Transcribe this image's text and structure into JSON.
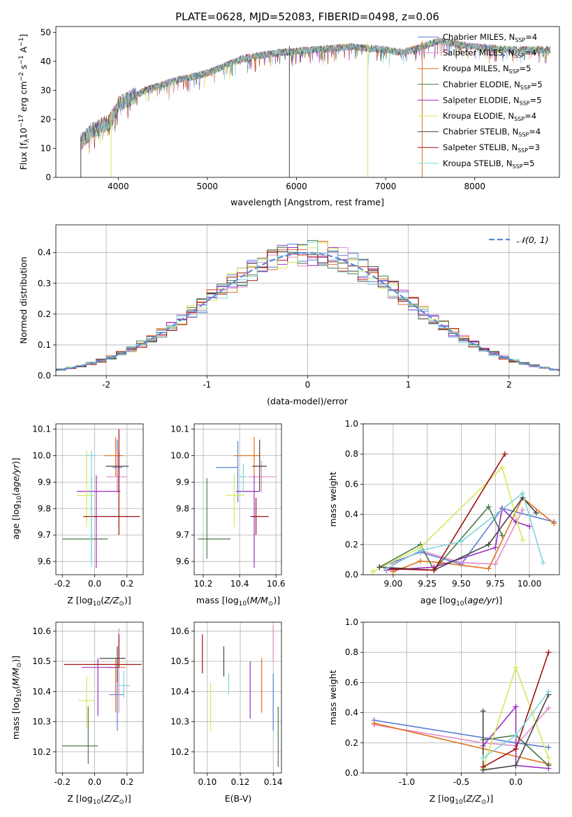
{
  "title": "PLATE=0628, MJD=52083, FIBERID=0498, z=0.06",
  "colors": {
    "Chabrier MILES": "#5a7fd6",
    "Salpeter MILES": "#e58bc9",
    "Kroupa MILES": "#e0711f",
    "Chabrier ELODIE": "#4a7a4a",
    "Salpeter ELODIE": "#9b30c0",
    "Kroupa ELODIE": "#d4e85a",
    "Chabrier STELIB": "#444444",
    "Salpeter STELIB": "#a01010",
    "Kroupa STELIB": "#7fd6dc"
  },
  "chart_data": [
    {
      "type": "line",
      "panel": "spectrum",
      "xlabel": "wavelength [Angstrom, rest frame]",
      "ylabel": "Flux [f_λ 10^-17 erg cm^-2 s^-1 A^-1]",
      "xlim": [
        3300,
        8950
      ],
      "ylim": [
        0,
        52
      ],
      "xticks": [
        4000,
        5000,
        6000,
        7000,
        8000
      ],
      "yticks": [
        0,
        10,
        20,
        30,
        40,
        50
      ],
      "grid": false,
      "legend": "upper right",
      "continuum": [
        [
          3580,
          12
        ],
        [
          3700,
          16
        ],
        [
          3900,
          19
        ],
        [
          4000,
          25
        ],
        [
          4300,
          30
        ],
        [
          4600,
          33
        ],
        [
          5000,
          36
        ],
        [
          5400,
          41
        ],
        [
          5800,
          43
        ],
        [
          6200,
          44
        ],
        [
          6600,
          45
        ],
        [
          7000,
          44
        ],
        [
          7200,
          43
        ],
        [
          7600,
          47
        ],
        [
          8000,
          45
        ],
        [
          8400,
          44
        ],
        [
          8850,
          44
        ]
      ],
      "series": [
        {
          "name": "Chabrier MILES",
          "N_SSP": 4
        },
        {
          "name": "Salpeter MILES",
          "N_SSP": 4
        },
        {
          "name": "Kroupa MILES",
          "N_SSP": 5
        },
        {
          "name": "Chabrier ELODIE",
          "N_SSP": 5
        },
        {
          "name": "Salpeter ELODIE",
          "N_SSP": 5
        },
        {
          "name": "Kroupa ELODIE",
          "N_SSP": 4
        },
        {
          "name": "Chabrier STELIB",
          "N_SSP": 4
        },
        {
          "name": "Salpeter STELIB",
          "N_SSP": 3
        },
        {
          "name": "Kroupa STELIB",
          "N_SSP": 5
        }
      ],
      "vertical_lines": [
        {
          "x": 3580,
          "series": "Chabrier STELIB"
        },
        {
          "x": 3920,
          "series": "Kroupa ELODIE"
        },
        {
          "x": 5920,
          "series": "Chabrier STELIB"
        },
        {
          "x": 6800,
          "series": "Kroupa ELODIE"
        },
        {
          "x": 7410,
          "series": "Kroupa MILES"
        }
      ]
    },
    {
      "type": "line",
      "panel": "residual-histogram",
      "xlabel": "(data-model)/error",
      "ylabel": "Normed distribution",
      "xlim": [
        -2.5,
        2.5
      ],
      "ylim": [
        0,
        0.49
      ],
      "xticks": [
        -2,
        -1,
        0,
        1,
        2
      ],
      "yticks": [
        0.0,
        0.1,
        0.2,
        0.3,
        0.4
      ],
      "grid": true,
      "legend": "upper right",
      "reference_curve": {
        "label": "𝒩(0, 1)",
        "mean": 0,
        "sigma": 1
      },
      "bin_width": 0.1
    },
    {
      "type": "scatter",
      "panel": "Z-vs-age",
      "xlabel": "Z [log10(Z/Z⊙)]",
      "ylabel": "age [log10(age/yr)]",
      "xlim": [
        -0.24,
        0.3
      ],
      "ylim": [
        9.55,
        10.12
      ],
      "xticks": [
        -0.2,
        0.0,
        0.2
      ],
      "yticks": [
        9.6,
        9.7,
        9.8,
        9.9,
        10.0,
        10.1
      ],
      "grid": true,
      "points": [
        {
          "series": "Chabrier MILES",
          "x": 0.14,
          "xerr": [
            0.03,
            0.03
          ],
          "y": 9.955,
          "yerr": [
            0.09,
            0.105
          ]
        },
        {
          "series": "Salpeter MILES",
          "x": 0.14,
          "xerr": [
            0.07,
            0.06
          ],
          "y": 9.92,
          "yerr": [
            0.06,
            0.1
          ]
        },
        {
          "series": "Kroupa MILES",
          "x": 0.13,
          "xerr": [
            0.07,
            0.05
          ],
          "y": 10.0,
          "yerr": [
            0.08,
            0.07
          ]
        },
        {
          "series": "Chabrier ELODIE",
          "x": -0.02,
          "xerr": [
            0.18,
            0.1
          ],
          "y": 9.685,
          "yerr": [
            0.075,
            0.23
          ]
        },
        {
          "series": "Salpeter ELODIE",
          "x": 0.01,
          "xerr": [
            0.12,
            0.15
          ],
          "y": 9.865,
          "yerr": [
            0.29,
            0.06
          ]
        },
        {
          "series": "Kroupa ELODIE",
          "x": -0.05,
          "xerr": [
            0.06,
            0.05
          ],
          "y": 9.85,
          "yerr": [
            0.12,
            0.17
          ]
        },
        {
          "series": "Chabrier STELIB",
          "x": 0.15,
          "xerr": [
            0.08,
            0.06
          ],
          "y": 9.96,
          "yerr": [
            0.095,
            0.06
          ]
        },
        {
          "series": "Salpeter STELIB",
          "x": 0.15,
          "xerr": [
            0.22,
            0.13
          ],
          "y": 9.77,
          "yerr": [
            0.07,
            0.33
          ]
        },
        {
          "series": "Kroupa STELIB",
          "x": -0.02,
          "xerr": [
            0.03,
            0.03
          ],
          "y": 10.0,
          "yerr": [
            0.42,
            0.02
          ]
        }
      ]
    },
    {
      "type": "scatter",
      "panel": "mass-vs-age",
      "xlabel": "mass [log10(M/M⊙)]",
      "ylabel": "",
      "xlim": [
        10.15,
        10.63
      ],
      "ylim": [
        9.55,
        10.12
      ],
      "xticks": [
        10.2,
        10.4,
        10.6
      ],
      "yticks": [
        9.6,
        9.7,
        9.8,
        9.9,
        10.0,
        10.1
      ],
      "grid": true,
      "points": [
        {
          "series": "Chabrier MILES",
          "x": 10.39,
          "xerr": [
            0.12,
            0.0
          ],
          "y": 9.955,
          "yerr": [
            0.13,
            0.1
          ]
        },
        {
          "series": "Salpeter MILES",
          "x": 10.52,
          "xerr": [
            0.07,
            0.08
          ],
          "y": 9.92,
          "yerr": [
            0.06,
            0.06
          ]
        },
        {
          "series": "Kroupa MILES",
          "x": 10.48,
          "xerr": [
            0.11,
            0.03
          ],
          "y": 10.0,
          "yerr": [
            0.08,
            0.07
          ]
        },
        {
          "series": "Chabrier ELODIE",
          "x": 10.22,
          "xerr": [
            0.05,
            0.13
          ],
          "y": 9.685,
          "yerr": [
            0.075,
            0.23
          ]
        },
        {
          "series": "Salpeter ELODIE",
          "x": 10.48,
          "xerr": [
            0.1,
            0.03
          ],
          "y": 9.865,
          "yerr": [
            0.29,
            0.06
          ]
        },
        {
          "series": "Kroupa ELODIE",
          "x": 10.37,
          "xerr": [
            0.05,
            0.06
          ],
          "y": 9.85,
          "yerr": [
            0.12,
            0.08
          ]
        },
        {
          "series": "Chabrier STELIB",
          "x": 10.51,
          "xerr": [
            0.04,
            0.04
          ],
          "y": 9.96,
          "yerr": [
            0.095,
            0.1
          ]
        },
        {
          "series": "Salpeter STELIB",
          "x": 10.49,
          "xerr": [
            0.03,
            0.07
          ],
          "y": 9.77,
          "yerr": [
            0.07,
            0.07
          ]
        },
        {
          "series": "Kroupa STELIB",
          "x": 10.42,
          "xerr": [
            0.02,
            0.02
          ],
          "y": 9.92,
          "yerr": [
            0.06,
            0.05
          ]
        }
      ]
    },
    {
      "type": "line",
      "panel": "age-weights",
      "xlabel": "age [log10(age/yr)]",
      "ylabel": "mass weight",
      "xlim": [
        8.78,
        10.22
      ],
      "ylim": [
        0,
        1
      ],
      "xticks": [
        9.0,
        9.25,
        9.5,
        9.75,
        10.0
      ],
      "yticks": [
        0.0,
        0.2,
        0.4,
        0.6,
        0.8,
        1.0
      ],
      "grid": true,
      "series": [
        {
          "name": "Chabrier MILES",
          "x": [
            8.9,
            9.2,
            9.5,
            9.8,
            10.18
          ],
          "y": [
            0.05,
            0.15,
            0.07,
            0.44,
            0.35
          ]
        },
        {
          "name": "Salpeter MILES",
          "x": [
            9.0,
            9.2,
            9.5,
            9.75,
            9.95
          ],
          "y": [
            0.07,
            0.16,
            0.08,
            0.07,
            0.43
          ]
        },
        {
          "name": "Kroupa MILES",
          "x": [
            9.0,
            9.2,
            9.35,
            9.7,
            9.95,
            10.18
          ],
          "y": [
            0.02,
            0.09,
            0.08,
            0.04,
            0.51,
            0.34
          ]
        },
        {
          "name": "Chabrier ELODIE",
          "x": [
            8.9,
            9.2,
            9.3,
            9.7,
            9.8
          ],
          "y": [
            0.05,
            0.2,
            0.03,
            0.45,
            0.26
          ]
        },
        {
          "name": "Salpeter ELODIE",
          "x": [
            8.95,
            9.3,
            9.75,
            9.8,
            9.9,
            10.0
          ],
          "y": [
            0.03,
            0.05,
            0.18,
            0.44,
            0.35,
            0.32
          ]
        },
        {
          "name": "Kroupa ELODIE",
          "x": [
            8.85,
            9.2,
            9.8,
            9.95
          ],
          "y": [
            0.02,
            0.18,
            0.71,
            0.23
          ]
        },
        {
          "name": "Chabrier STELIB",
          "x": [
            8.9,
            9.3,
            9.7,
            9.95,
            10.05
          ],
          "y": [
            0.05,
            0.03,
            0.2,
            0.51,
            0.41
          ]
        },
        {
          "name": "Salpeter STELIB",
          "x": [
            8.95,
            9.3,
            9.82
          ],
          "y": [
            0.04,
            0.03,
            0.8
          ]
        },
        {
          "name": "Kroupa STELIB",
          "x": [
            8.95,
            9.2,
            9.5,
            9.95,
            10.1
          ],
          "y": [
            0.04,
            0.16,
            0.22,
            0.54,
            0.08
          ]
        }
      ]
    },
    {
      "type": "scatter",
      "panel": "Z-vs-mass",
      "xlabel": "Z [log10(Z/Z⊙)]",
      "ylabel": "mass [log10(M/M⊙)]",
      "xlim": [
        -0.24,
        0.3
      ],
      "ylim": [
        10.13,
        10.63
      ],
      "xticks": [
        -0.2,
        0.0,
        0.2
      ],
      "yticks": [
        10.2,
        10.3,
        10.4,
        10.5,
        10.6
      ],
      "grid": true,
      "points": [
        {
          "series": "Chabrier MILES",
          "x": 0.14,
          "xerr": [
            0.05,
            0.04
          ],
          "y": 10.39,
          "yerr": [
            0.12,
            0.08
          ]
        },
        {
          "series": "Salpeter MILES",
          "x": 0.15,
          "xerr": [
            0.02,
            0.03
          ],
          "y": 10.51,
          "yerr": [
            0.18,
            0.1
          ]
        },
        {
          "series": "Kroupa MILES",
          "x": 0.13,
          "xerr": [
            0.06,
            0.06
          ],
          "y": 10.48,
          "yerr": [
            0.15,
            0.03
          ]
        },
        {
          "series": "Chabrier ELODIE",
          "x": -0.04,
          "xerr": [
            0.16,
            0.06
          ],
          "y": 10.22,
          "yerr": [
            0.06,
            0.13
          ]
        },
        {
          "series": "Salpeter ELODIE",
          "x": 0.02,
          "xerr": [
            0.1,
            0.13
          ],
          "y": 10.48,
          "yerr": [
            0.16,
            0.03
          ]
        },
        {
          "series": "Kroupa ELODIE",
          "x": -0.05,
          "xerr": [
            0.05,
            0.05
          ],
          "y": 10.37,
          "yerr": [
            0.09,
            0.08
          ]
        },
        {
          "series": "Chabrier STELIB",
          "x": 0.14,
          "xerr": [
            0.11,
            0.05
          ],
          "y": 10.51,
          "yerr": [
            0.08,
            0.04
          ]
        },
        {
          "series": "Salpeter STELIB",
          "x": 0.15,
          "xerr": [
            0.34,
            0.14
          ],
          "y": 10.49,
          "yerr": [
            0.01,
            0.1
          ]
        },
        {
          "series": "Kroupa STELIB",
          "x": 0.18,
          "xerr": [
            0.04,
            0.04
          ],
          "y": 10.42,
          "yerr": [
            0.04,
            0.05
          ]
        }
      ]
    },
    {
      "type": "scatter",
      "panel": "EBV-vs-mass",
      "xlabel": "E(B-V)",
      "ylabel": "",
      "xlim": [
        0.092,
        0.145
      ],
      "ylim": [
        10.13,
        10.63
      ],
      "xticks": [
        0.1,
        0.12,
        0.14
      ],
      "yticks": [
        10.2,
        10.3,
        10.4,
        10.5,
        10.6
      ],
      "grid": true,
      "points": [
        {
          "series": "Salpeter STELIB",
          "x": 0.097,
          "y": 10.53,
          "yerr": [
            0.07,
            0.06
          ]
        },
        {
          "series": "Kroupa ELODIE",
          "x": 0.102,
          "y": 10.35,
          "yerr": [
            0.08,
            0.08
          ]
        },
        {
          "series": "Chabrier STELIB",
          "x": 0.11,
          "y": 10.5,
          "yerr": [
            0.05,
            0.05
          ]
        },
        {
          "series": "Kroupa STELIB",
          "x": 0.113,
          "y": 10.42,
          "yerr": [
            0.03,
            0.04
          ]
        },
        {
          "series": "Salpeter ELODIE",
          "x": 0.126,
          "y": 10.41,
          "yerr": [
            0.1,
            0.09
          ]
        },
        {
          "series": "Kroupa MILES",
          "x": 0.133,
          "y": 10.42,
          "yerr": [
            0.09,
            0.09
          ]
        },
        {
          "series": "Salpeter MILES",
          "x": 0.14,
          "y": 10.54,
          "yerr": [
            0.04,
            0.08
          ]
        },
        {
          "series": "Chabrier MILES",
          "x": 0.14,
          "y": 10.36,
          "yerr": [
            0.09,
            0.1
          ]
        },
        {
          "series": "Chabrier ELODIE",
          "x": 0.143,
          "y": 10.25,
          "yerr": [
            0.1,
            0.1
          ]
        }
      ]
    },
    {
      "type": "line",
      "panel": "Z-weights",
      "xlabel": "Z [log10(Z/Z⊙)]",
      "ylabel": "mass weight",
      "xlim": [
        -1.4,
        0.4
      ],
      "ylim": [
        0,
        1
      ],
      "xticks": [
        -1.0,
        -0.5,
        0.0
      ],
      "yticks": [
        0.0,
        0.2,
        0.4,
        0.6,
        0.8,
        1.0
      ],
      "grid": true,
      "series": [
        {
          "name": "Chabrier MILES",
          "x": [
            -1.3,
            0.0,
            0.3
          ],
          "y": [
            0.35,
            0.2,
            0.17
          ]
        },
        {
          "name": "Salpeter MILES",
          "x": [
            -1.3,
            -0.3,
            0.0,
            0.3
          ],
          "y": [
            0.32,
            0.2,
            0.18,
            0.43
          ]
        },
        {
          "name": "Kroupa MILES",
          "x": [
            -1.3,
            0.3
          ],
          "y": [
            0.33,
            0.06
          ]
        },
        {
          "name": "Chabrier ELODIE",
          "x": [
            -0.3,
            0.0,
            0.3
          ],
          "y": [
            0.22,
            0.25,
            0.05
          ]
        },
        {
          "name": "Salpeter ELODIE",
          "x": [
            -0.3,
            0.0,
            0.0,
            0.3
          ],
          "y": [
            0.18,
            0.44,
            0.05,
            0.03
          ]
        },
        {
          "name": "Kroupa ELODIE",
          "x": [
            -0.3,
            0.0,
            0.3
          ],
          "y": [
            0.03,
            0.7,
            0.1
          ]
        },
        {
          "name": "Chabrier STELIB",
          "x": [
            -0.3,
            -0.3,
            0.0,
            0.3
          ],
          "y": [
            0.41,
            0.02,
            0.05,
            0.52
          ]
        },
        {
          "name": "Salpeter STELIB",
          "x": [
            -0.3,
            0.0,
            0.3
          ],
          "y": [
            0.04,
            0.16,
            0.8
          ]
        },
        {
          "name": "Kroupa STELIB",
          "x": [
            -0.3,
            0.0,
            0.3
          ],
          "y": [
            0.1,
            0.25,
            0.54
          ]
        }
      ]
    }
  ]
}
